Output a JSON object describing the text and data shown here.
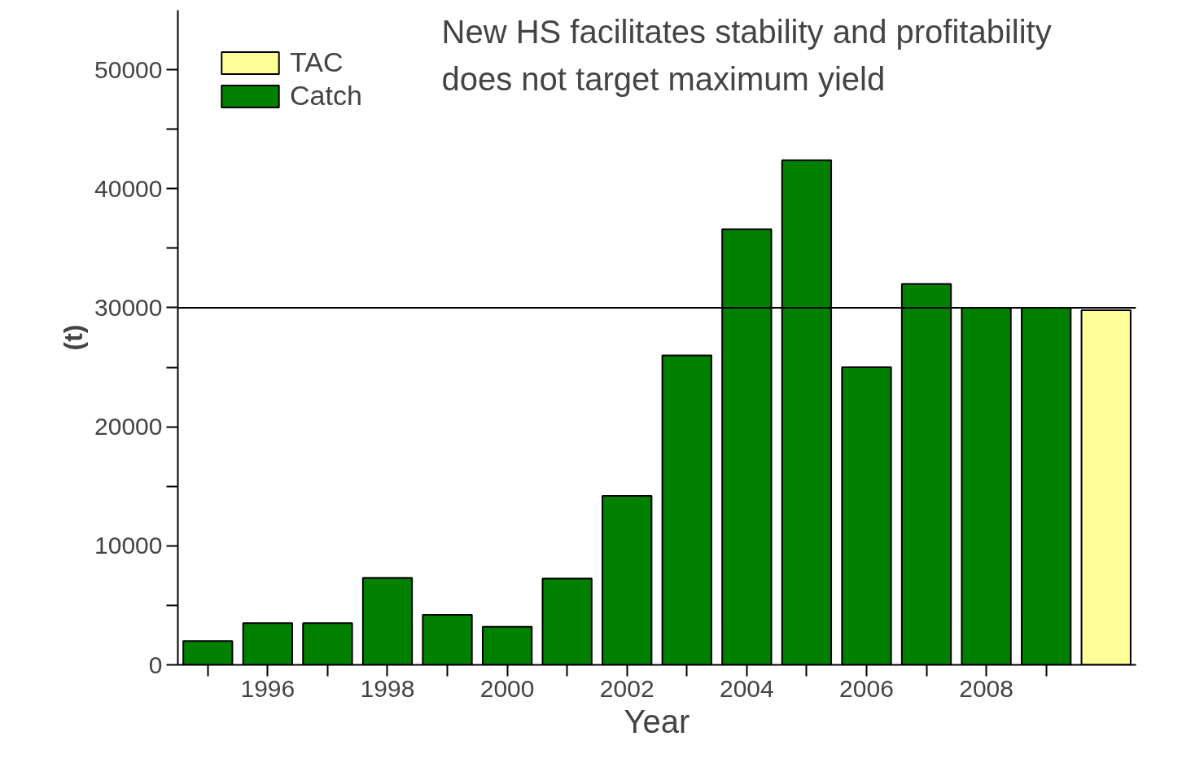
{
  "chart_data": {
    "type": "bar",
    "xlabel": "Year",
    "ylabel": "(t)",
    "annotations": [
      "New HS facilitates stability and profitability",
      "does not target maximum yield"
    ],
    "series": [
      {
        "name": "TAC",
        "color": "#ffff99",
        "x": [
          2010
        ],
        "values": [
          29800
        ]
      },
      {
        "name": "Catch",
        "color": "#008000",
        "x": [
          1995,
          1996,
          1997,
          1998,
          1999,
          2000,
          2001,
          2002,
          2003,
          2004,
          2005,
          2006,
          2007,
          2008,
          2009
        ],
        "values": [
          2000,
          3500,
          3500,
          7300,
          4200,
          3200,
          7250,
          14200,
          26000,
          36600,
          42400,
          25000,
          32000,
          30000,
          30000
        ]
      }
    ],
    "xlim": [
      1994.5,
      2010.5
    ],
    "ylim": [
      0,
      55000
    ],
    "xticks": [
      {
        "value": 1995,
        "label": null
      },
      1996,
      {
        "value": 1997,
        "label": null
      },
      1998,
      {
        "value": 1999,
        "label": null
      },
      2000,
      {
        "value": 2001,
        "label": null
      },
      2002,
      {
        "value": 2003,
        "label": null
      },
      2004,
      {
        "value": 2005,
        "label": null
      },
      2006,
      {
        "value": 2007,
        "label": null
      },
      2008,
      {
        "value": 2009,
        "label": null
      }
    ],
    "yticks": [
      0,
      {
        "value": 5000,
        "label": null
      },
      10000,
      {
        "value": 15000,
        "label": null
      },
      20000,
      {
        "value": 25000,
        "label": null
      },
      30000,
      {
        "value": 35000,
        "label": null
      },
      40000,
      {
        "value": 45000,
        "label": null
      },
      50000
    ],
    "ref_lines": [
      {
        "axis": "y",
        "value": 30000,
        "color": "#000000"
      }
    ],
    "legend": "top left",
    "grid": false
  }
}
